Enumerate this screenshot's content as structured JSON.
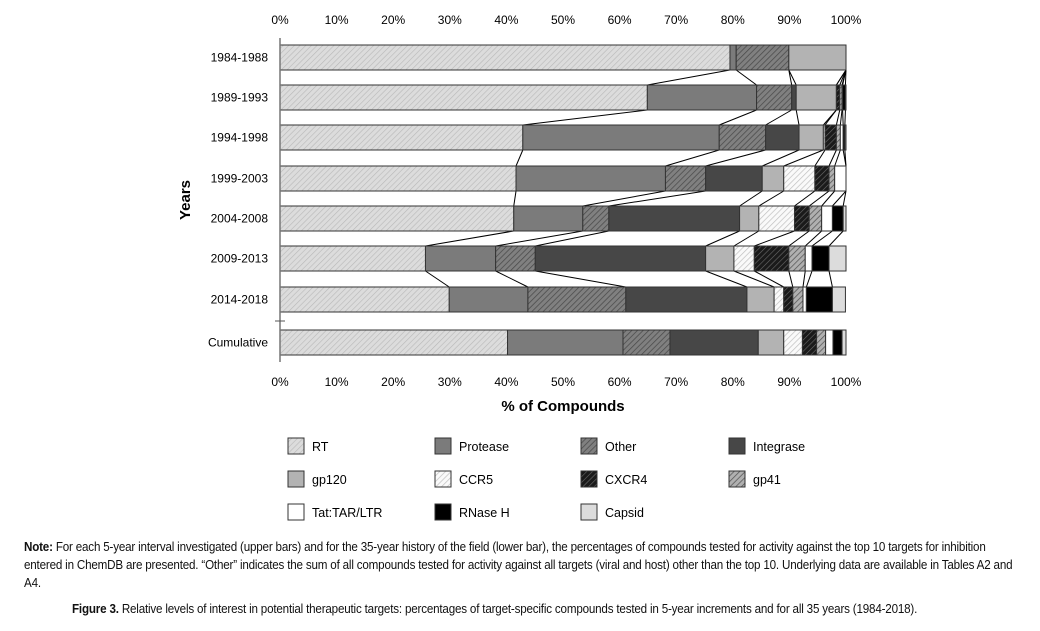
{
  "chart_data": {
    "type": "bar",
    "orientation": "horizontal",
    "stacked": true,
    "normalized": true,
    "title": "",
    "xlabel": "% of Compounds",
    "ylabel": "Years",
    "xlim": [
      0,
      100
    ],
    "xticks": [
      "0%",
      "10%",
      "20%",
      "30%",
      "40%",
      "50%",
      "60%",
      "70%",
      "80%",
      "90%",
      "100%"
    ],
    "categories": [
      "1984-1988",
      "1989-1993",
      "1994-1998",
      "1999-2003",
      "2004-2008",
      "2009-2013",
      "2014-2018",
      "Cumulative"
    ],
    "legend_position": "bottom",
    "series": [
      {
        "name": "RT",
        "color": "#d9d9d9",
        "values": [
          79.5,
          64.9,
          42.9,
          41.7,
          41.3,
          25.7,
          29.9,
          40.2
        ]
      },
      {
        "name": "Protease",
        "color": "#7b7b7b",
        "values": [
          1.1,
          19.3,
          34.7,
          26.4,
          12.2,
          12.4,
          13.9,
          20.4
        ]
      },
      {
        "name": "Other",
        "color": "#6e6e6e",
        "values": [
          9.3,
          6.2,
          8.2,
          7.1,
          4.6,
          7.0,
          17.3,
          8.3
        ]
      },
      {
        "name": "Integrase",
        "color": "#474747",
        "values": [
          0,
          0.8,
          5.9,
          10.0,
          23.1,
          30.1,
          21.4,
          15.6
        ]
      },
      {
        "name": "gp120",
        "color": "#b3b3b3",
        "values": [
          10.1,
          7.1,
          4.3,
          3.8,
          3.4,
          5.0,
          4.8,
          4.5
        ]
      },
      {
        "name": "CCR5",
        "color": "#f2f2f2",
        "values": [
          0,
          0,
          0.3,
          5.5,
          6.3,
          3.6,
          1.7,
          3.3
        ]
      },
      {
        "name": "CXCR4",
        "color": "#222222",
        "values": [
          0,
          0.6,
          2.0,
          2.5,
          2.6,
          6.1,
          1.6,
          2.5
        ]
      },
      {
        "name": "gp41",
        "color": "#9a9a9a",
        "values": [
          0,
          0.4,
          0.7,
          1.0,
          2.2,
          2.9,
          1.8,
          1.6
        ]
      },
      {
        "name": "Tat:TAR/LTR",
        "color": "#ffffff",
        "values": [
          0,
          0.1,
          0.5,
          2.0,
          1.9,
          1.2,
          0.6,
          1.3
        ]
      },
      {
        "name": "RNase H",
        "color": "#000000",
        "values": [
          0,
          0.5,
          0.3,
          0,
          1.9,
          3.0,
          4.6,
          1.6
        ]
      },
      {
        "name": "Capsid",
        "color": "#dcdcdc",
        "values": [
          0,
          0.1,
          0.2,
          0,
          0.5,
          3.0,
          2.3,
          0.7
        ]
      }
    ]
  },
  "note": {
    "label": "Note:",
    "text": " For each 5-year interval investigated (upper bars) and for the 35-year history of the field (lower bar), the percentages of compounds tested for activity against the top 10 targets for inhibition entered in ChemDB are presented. “Other” indicates the sum of all compounds tested for activity against all targets (viral and host) other than the top 10. Underlying data are available in Tables A2 and A4."
  },
  "caption": {
    "label": "Figure 3.",
    "text": " Relative levels of interest in potential therapeutic targets: percentages of target-specific compounds tested in 5-year increments and for all 35 years (1984-2018)."
  }
}
